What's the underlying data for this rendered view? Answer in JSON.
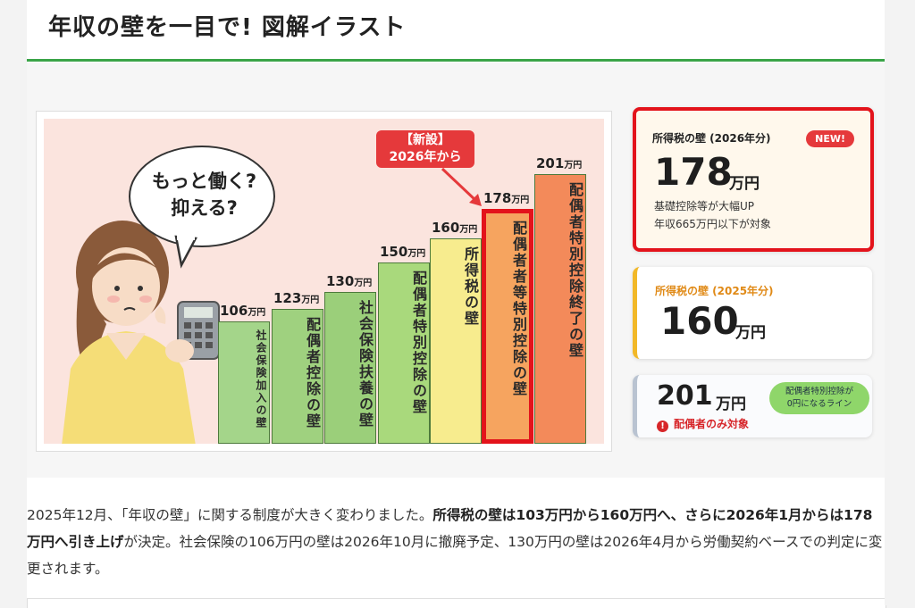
{
  "header": {
    "title": "年収の壁を一目で! 図解イラスト"
  },
  "illustration": {
    "speech": {
      "line1": "もっと働く?",
      "line2": "抑える?"
    },
    "new_tag": {
      "line1": "【新設】",
      "line2": "2026年から"
    },
    "unit": "万円",
    "bars": [
      {
        "value": "106",
        "label": "社会保険加入の壁",
        "color": "#a4d58a"
      },
      {
        "value": "123",
        "label": "配偶者控除の壁",
        "color": "#9fd17f"
      },
      {
        "value": "130",
        "label": "社会保険扶養の壁",
        "color": "#9bcf7a"
      },
      {
        "value": "150",
        "label": "配偶者特別控除の壁",
        "color": "#a9d97c"
      },
      {
        "value": "160",
        "label": "所得税の壁",
        "color": "#f7ec8e"
      },
      {
        "value": "178",
        "label": "配偶者者等特別控除の壁",
        "color": "#f6a45f"
      },
      {
        "value": "201",
        "label": "配偶者特別控除終了の壁",
        "color": "#f38a5a"
      }
    ]
  },
  "cards": {
    "card1": {
      "label": "所得税の壁 (2026年分)",
      "badge": "NEW!",
      "value": "178",
      "unit": "万円",
      "note1": "基礎控除等が大幅UP",
      "note2": "年収665万円以下が対象",
      "label_color": "#222"
    },
    "card2": {
      "label": "所得税の壁 (2025年分)",
      "value": "160",
      "unit": "万円",
      "label_color": "#e08a17"
    },
    "card3": {
      "value": "201",
      "unit": "万円",
      "badge_line1": "配偶者特別控除が",
      "badge_line2": "0円になるライン",
      "warning": "配偶者のみ対象"
    }
  },
  "body": {
    "p1": "2025年12月、「年収の壁」に関する制度が大きく変わりました。",
    "p1_bold": "所得税の壁は103万円から160万円へ、さらに2026年1月からは178万円へ引き上げ",
    "p1_tail": "が決定。社会保険の106万円の壁は2026年10月に撤廃予定、130万円の壁は2026年4月から労働契約ベースでの判定に変更されます。"
  }
}
